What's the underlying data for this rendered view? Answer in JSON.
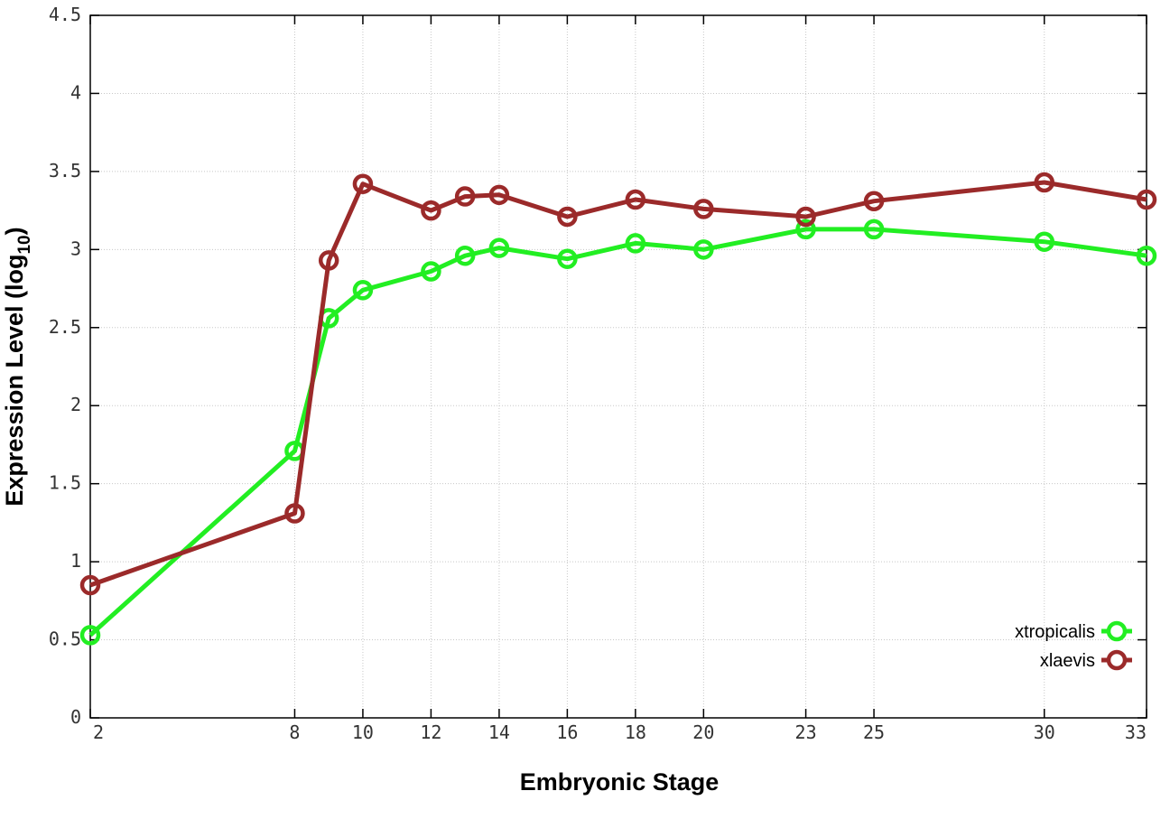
{
  "chart_data": {
    "type": "line",
    "xlabel": "Embryonic Stage",
    "ylabel_main": "Expression Level (log",
    "ylabel_sub": "10",
    "ylabel_close": ")",
    "x": [
      2,
      8,
      9,
      10,
      12,
      13,
      14,
      16,
      18,
      20,
      23,
      25,
      30,
      33
    ],
    "x_ticks": [
      "2",
      "8",
      "10",
      "12",
      "14",
      "16",
      "18",
      "20",
      "23",
      "25",
      "30",
      "33"
    ],
    "x_tick_values": [
      2,
      8,
      10,
      12,
      14,
      16,
      18,
      20,
      23,
      25,
      30,
      33
    ],
    "xlim": [
      2,
      33
    ],
    "y_ticks": [
      "0",
      "0.5",
      "1",
      "1.5",
      "2",
      "2.5",
      "3",
      "3.5",
      "4",
      "4.5"
    ],
    "y_tick_values": [
      0,
      0.5,
      1,
      1.5,
      2,
      2.5,
      3,
      3.5,
      4,
      4.5
    ],
    "ylim": [
      0,
      4.5
    ],
    "grid": true,
    "legend_position": "bottom-right",
    "series": [
      {
        "name": "xtropicalis",
        "color": "#22ee22",
        "values": [
          0.53,
          1.71,
          2.56,
          2.74,
          2.86,
          2.96,
          3.01,
          2.94,
          3.04,
          3.0,
          3.13,
          3.13,
          3.05,
          2.96
        ]
      },
      {
        "name": "xlaevis",
        "color": "#9b2a2a",
        "values": [
          0.85,
          1.31,
          2.93,
          3.42,
          3.25,
          3.34,
          3.35,
          3.21,
          3.32,
          3.26,
          3.21,
          3.31,
          3.43,
          3.32
        ]
      }
    ]
  }
}
